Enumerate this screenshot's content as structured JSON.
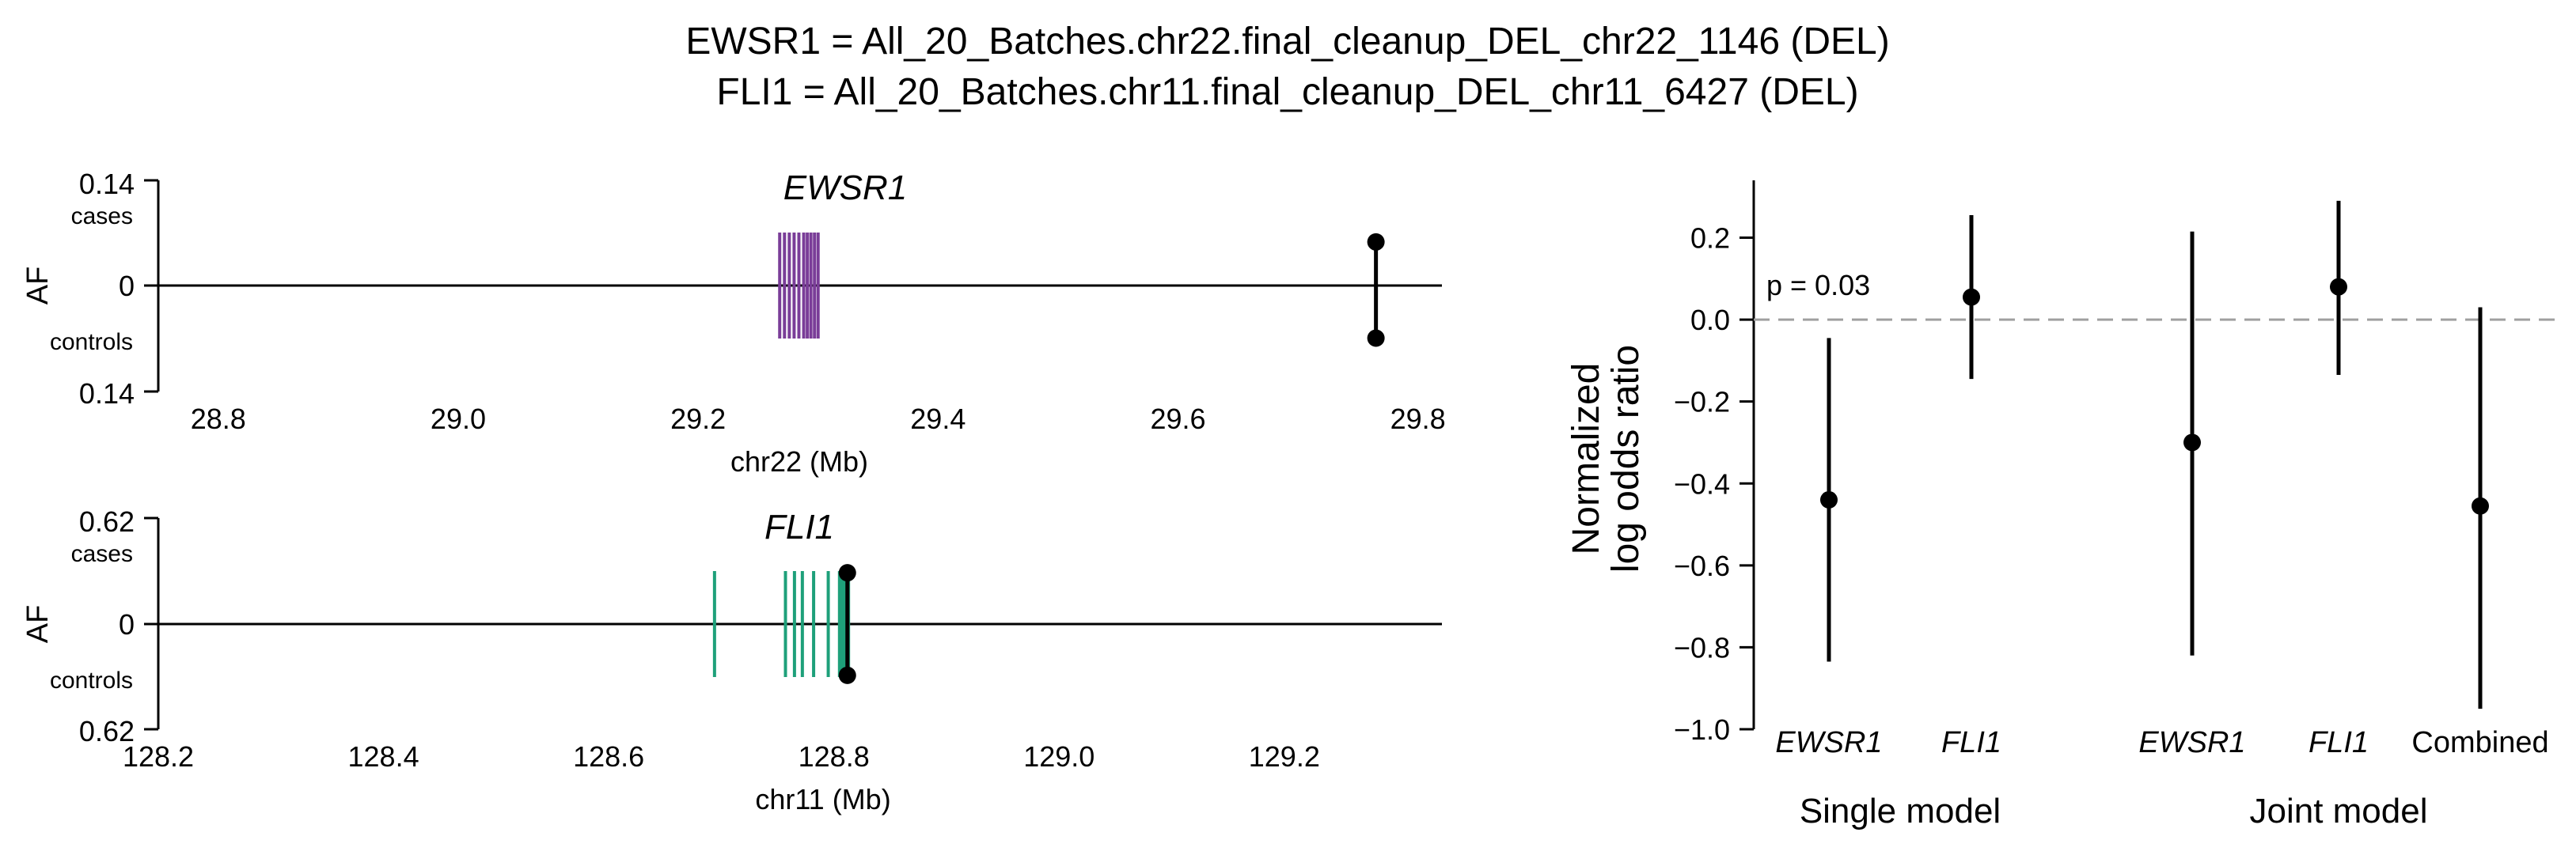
{
  "figure": {
    "title_line1": "EWSR1 = All_20_Batches.chr22.final_cleanup_DEL_chr22_1146 (DEL)",
    "title_line2": "FLI1 = All_20_Batches.chr11.final_cleanup_DEL_chr11_6427 (DEL)"
  },
  "colors": {
    "ewsr1_gene": "#7a3d98",
    "fli1_gene": "#1ea07a",
    "points": "#000000",
    "ref_line": "#a0a0a0"
  },
  "chart_data": [
    {
      "type": "scatter",
      "panel": "EWSR1 locus",
      "title": "EWSR1",
      "ylabel": "AF",
      "ylabel_top": "cases",
      "ylabel_bottom": "controls",
      "yticks": [
        "0.14",
        "0",
        "0.14"
      ],
      "ylim": [
        -0.14,
        0.14
      ],
      "xlabel": "chr22 (Mb)",
      "xticks": [
        28.8,
        29.0,
        29.2,
        29.4,
        29.6,
        29.8
      ],
      "xtick_labels": [
        "28.8",
        "29.0",
        "29.2",
        "29.4",
        "29.6",
        "29.8"
      ],
      "xlim": [
        28.75,
        29.82
      ],
      "gene_exons_mb": [
        29.268,
        29.272,
        29.276,
        29.28,
        29.284,
        29.288,
        29.291,
        29.294,
        29.297,
        29.3
      ],
      "variant": {
        "pos_mb": 29.765,
        "af_cases": 0.058,
        "af_controls": 0.07
      }
    },
    {
      "type": "scatter",
      "panel": "FLI1 locus",
      "title": "FLI1",
      "ylabel": "AF",
      "ylabel_top": "cases",
      "ylabel_bottom": "controls",
      "yticks": [
        "0.62",
        "0",
        "0.62"
      ],
      "ylim": [
        -0.62,
        0.62
      ],
      "xlabel": "chr11 (Mb)",
      "xticks": [
        128.2,
        128.4,
        128.6,
        128.8,
        129.0,
        129.2
      ],
      "xtick_labels": [
        "128.2",
        "128.4",
        "128.6",
        "128.8",
        "129.0",
        "129.2"
      ],
      "xlim": [
        128.2,
        129.34
      ],
      "gene_exons_mb": [
        128.694,
        128.757,
        128.765,
        128.772,
        128.782,
        128.795,
        128.805,
        128.807,
        128.809,
        128.811,
        128.813
      ],
      "variant": {
        "pos_mb": 128.812,
        "af_cases": 0.3,
        "af_controls": 0.3
      }
    },
    {
      "type": "scatter",
      "panel": "log odds ratios",
      "ylabel_line1": "Normalized",
      "ylabel_line2": "log odds ratio",
      "ylim": [
        -1.0,
        0.34
      ],
      "yticks": [
        -1.0,
        -0.8,
        -0.6,
        -0.4,
        -0.2,
        0.0,
        0.2
      ],
      "ytick_labels": [
        "−1.0",
        "−0.8",
        "−0.6",
        "−0.4",
        "−0.2",
        "0.0",
        "0.2"
      ],
      "reference_line": 0.0,
      "annotation": "p = 0.03",
      "points": [
        {
          "label": "EWSR1",
          "italic": true,
          "group": "Single model",
          "value": -0.44,
          "lower": -0.835,
          "upper": -0.045
        },
        {
          "label": "FLI1",
          "italic": true,
          "group": "Single model",
          "value": 0.055,
          "lower": -0.145,
          "upper": 0.255
        },
        {
          "label": "EWSR1",
          "italic": true,
          "group": "Joint model",
          "value": -0.3,
          "lower": -0.82,
          "upper": 0.215
        },
        {
          "label": "FLI1",
          "italic": true,
          "group": "Joint model",
          "value": 0.08,
          "lower": -0.135,
          "upper": 0.29
        },
        {
          "label": "Combined",
          "italic": false,
          "group": "Joint model",
          "value": -0.455,
          "lower": -0.95,
          "upper": 0.03
        }
      ],
      "groups": [
        "Single model",
        "Joint model"
      ]
    }
  ]
}
